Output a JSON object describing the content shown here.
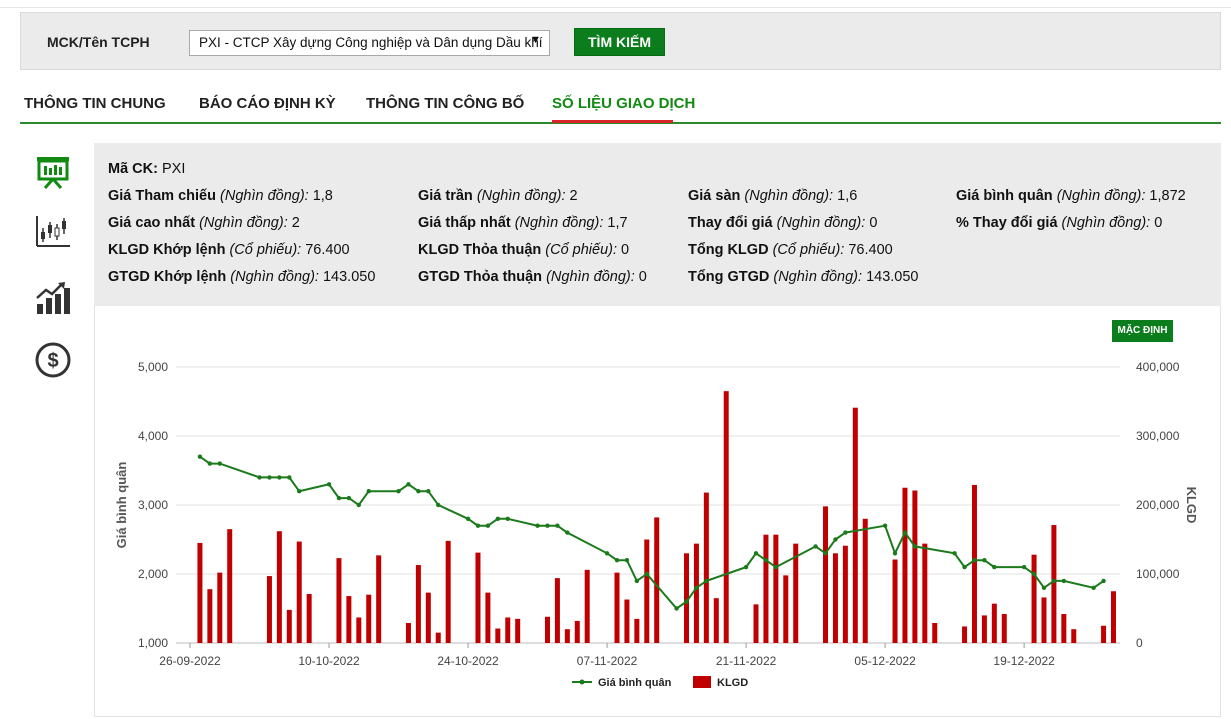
{
  "search": {
    "label": "MCK/Tên TCPH",
    "selected": "PXI - CTCP Xây dựng Công nghiệp và Dân dụng Dầu khí",
    "button": "TÌM KIẾM"
  },
  "tabs": [
    {
      "label": "THÔNG TIN CHUNG"
    },
    {
      "label": "BÁO CÁO ĐỊNH KỲ"
    },
    {
      "label": "THÔNG TIN CÔNG BỐ"
    },
    {
      "label": "SỐ LIỆU GIAO DỊCH"
    }
  ],
  "sidebar": {
    "icons": [
      "presentation-icon",
      "candlestick-chart-icon",
      "growth-chart-icon",
      "dollar-coin-icon"
    ],
    "colors": {
      "active": "#118a11",
      "inactive": "#333333"
    }
  },
  "info": {
    "ma_ck": {
      "label": "Mã CK:",
      "value": "PXI"
    },
    "cells": [
      {
        "label": "Giá Tham chiếu",
        "unit": "(Nghìn đồng):",
        "value": "1,8"
      },
      {
        "label": "Giá trần",
        "unit": "(Nghìn đồng):",
        "value": "2"
      },
      {
        "label": "Giá sàn",
        "unit": "(Nghìn đồng):",
        "value": "1,6"
      },
      {
        "label": "Giá bình quân",
        "unit": "(Nghìn đồng):",
        "value": "1,872"
      },
      {
        "label": "Giá cao nhất",
        "unit": "(Nghìn đồng):",
        "value": "2"
      },
      {
        "label": "Giá thấp nhất",
        "unit": "(Nghìn đồng):",
        "value": "1,7"
      },
      {
        "label": "Thay đổi giá",
        "unit": "(Nghìn đồng):",
        "value": "0"
      },
      {
        "label": "% Thay đổi giá",
        "unit": "(Nghìn đồng):",
        "value": "0"
      },
      {
        "label": "KLGD Khớp lệnh",
        "unit": "(Cổ phiếu):",
        "value": "76.400"
      },
      {
        "label": "KLGD Thỏa thuận",
        "unit": "(Cổ phiếu):",
        "value": "0"
      },
      {
        "label": "Tổng KLGD",
        "unit": "(Cổ phiếu):",
        "value": "76.400"
      },
      {
        "label": "GTGD Khớp lệnh",
        "unit": "(Nghìn đồng):",
        "value": "143.050"
      },
      {
        "label": "GTGD Thỏa thuận",
        "unit": "(Nghìn đồng):",
        "value": "0"
      },
      {
        "label": "Tổng GTGD",
        "unit": "(Nghìn đồng):",
        "value": "143.050"
      }
    ]
  },
  "chart_controls": {
    "default_button": "MẶC ĐỊNH"
  },
  "chart_data": {
    "type": "bar+line",
    "x_tick_labels": [
      "26-09-2022",
      "10-10-2022",
      "24-10-2022",
      "07-11-2022",
      "21-11-2022",
      "05-12-2022",
      "19-12-2022"
    ],
    "x_tick_day": [
      0,
      14,
      28,
      42,
      56,
      70,
      84
    ],
    "ylabel_left": "Giá bình quân",
    "ylabel_right": "KLGD",
    "ylim_left": [
      1000,
      5000
    ],
    "ylim_right": [
      0,
      400000
    ],
    "yticks_left": [
      "1,000",
      "2,000",
      "3,000",
      "4,000",
      "5,000"
    ],
    "yticks_left_values": [
      1000,
      2000,
      3000,
      4000,
      5000
    ],
    "yticks_right": [
      "0",
      "100,000",
      "200,000",
      "300,000",
      "400,000"
    ],
    "yticks_right_values": [
      0,
      100000,
      200000,
      300000,
      400000
    ],
    "series": [
      {
        "name": "Giá bình quân",
        "kind": "line",
        "color": "#1b7a1b",
        "points": [
          [
            1,
            3700
          ],
          [
            2,
            3600
          ],
          [
            3,
            3600
          ],
          [
            7,
            3400
          ],
          [
            8,
            3400
          ],
          [
            9,
            3400
          ],
          [
            10,
            3400
          ],
          [
            11,
            3200
          ],
          [
            14,
            3300
          ],
          [
            15,
            3100
          ],
          [
            16,
            3100
          ],
          [
            17,
            3000
          ],
          [
            18,
            3200
          ],
          [
            21,
            3200
          ],
          [
            22,
            3300
          ],
          [
            23,
            3200
          ],
          [
            24,
            3200
          ],
          [
            25,
            3000
          ],
          [
            28,
            2800
          ],
          [
            29,
            2700
          ],
          [
            30,
            2700
          ],
          [
            31,
            2800
          ],
          [
            32,
            2800
          ],
          [
            35,
            2700
          ],
          [
            36,
            2700
          ],
          [
            37,
            2700
          ],
          [
            38,
            2600
          ],
          [
            42,
            2300
          ],
          [
            43,
            2200
          ],
          [
            44,
            2200
          ],
          [
            45,
            1900
          ],
          [
            46,
            2000
          ],
          [
            49,
            1500
          ],
          [
            50,
            1600
          ],
          [
            51,
            1800
          ],
          [
            52,
            1900
          ],
          [
            56,
            2100
          ],
          [
            57,
            2300
          ],
          [
            58,
            2200
          ],
          [
            59,
            2100
          ],
          [
            63,
            2400
          ],
          [
            64,
            2300
          ],
          [
            65,
            2500
          ],
          [
            66,
            2600
          ],
          [
            70,
            2700
          ],
          [
            71,
            2300
          ],
          [
            72,
            2600
          ],
          [
            73,
            2400
          ],
          [
            77,
            2300
          ],
          [
            78,
            2100
          ],
          [
            79,
            2200
          ],
          [
            80,
            2200
          ],
          [
            81,
            2100
          ],
          [
            84,
            2100
          ],
          [
            85,
            2000
          ],
          [
            86,
            1800
          ],
          [
            87,
            1900
          ],
          [
            88,
            1900
          ],
          [
            91,
            1800
          ],
          [
            92,
            1900
          ]
        ]
      },
      {
        "name": "KLGD",
        "kind": "bar",
        "color": "#c00000",
        "points": [
          [
            1,
            145000
          ],
          [
            2,
            78000
          ],
          [
            3,
            102000
          ],
          [
            4,
            165000
          ],
          [
            8,
            97000
          ],
          [
            9,
            162000
          ],
          [
            10,
            48000
          ],
          [
            11,
            147000
          ],
          [
            12,
            71000
          ],
          [
            15,
            123000
          ],
          [
            16,
            68000
          ],
          [
            17,
            37000
          ],
          [
            18,
            70000
          ],
          [
            19,
            127000
          ],
          [
            22,
            29000
          ],
          [
            23,
            113000
          ],
          [
            24,
            73000
          ],
          [
            25,
            15000
          ],
          [
            26,
            148000
          ],
          [
            29,
            131000
          ],
          [
            30,
            73000
          ],
          [
            31,
            21000
          ],
          [
            32,
            37000
          ],
          [
            33,
            35000
          ],
          [
            36,
            38000
          ],
          [
            37,
            94000
          ],
          [
            38,
            20000
          ],
          [
            39,
            32000
          ],
          [
            40,
            106000
          ],
          [
            43,
            102000
          ],
          [
            44,
            63000
          ],
          [
            45,
            35000
          ],
          [
            46,
            150000
          ],
          [
            47,
            182000
          ],
          [
            50,
            130000
          ],
          [
            51,
            144000
          ],
          [
            52,
            218000
          ],
          [
            53,
            65000
          ],
          [
            54,
            365000
          ],
          [
            57,
            56000
          ],
          [
            58,
            157000
          ],
          [
            59,
            157000
          ],
          [
            60,
            98000
          ],
          [
            61,
            144000
          ],
          [
            64,
            198000
          ],
          [
            65,
            130000
          ],
          [
            66,
            141000
          ],
          [
            67,
            341000
          ],
          [
            68,
            180000
          ],
          [
            71,
            121000
          ],
          [
            72,
            225000
          ],
          [
            73,
            221000
          ],
          [
            74,
            144000
          ],
          [
            75,
            29000
          ],
          [
            78,
            24000
          ],
          [
            79,
            229000
          ],
          [
            80,
            40000
          ],
          [
            81,
            57000
          ],
          [
            82,
            42000
          ],
          [
            85,
            128000
          ],
          [
            86,
            66000
          ],
          [
            87,
            171000
          ],
          [
            88,
            42000
          ],
          [
            89,
            20000
          ],
          [
            92,
            25000
          ],
          [
            93,
            75000
          ]
        ]
      }
    ],
    "legend": {
      "position": "bottom-center",
      "items": [
        "Giá bình quân",
        "KLGD"
      ]
    },
    "grid": true
  }
}
